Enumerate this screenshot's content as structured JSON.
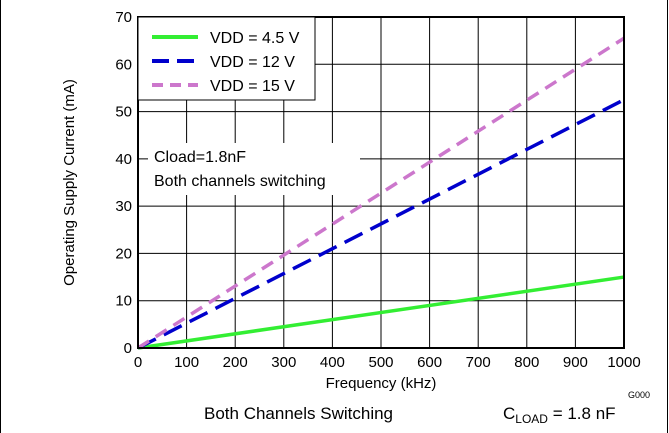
{
  "chart_data": {
    "type": "line",
    "xlabel": "Frequency (kHz)",
    "ylabel": "Operating Supply Current (mA)",
    "xlim": [
      0,
      1000
    ],
    "ylim": [
      0,
      70
    ],
    "xticks": [
      0,
      100,
      200,
      300,
      400,
      500,
      600,
      700,
      800,
      900,
      1000
    ],
    "yticks": [
      0,
      10,
      20,
      30,
      40,
      50,
      60,
      70
    ],
    "grid": true,
    "legend_position": "top-left",
    "series": [
      {
        "name": "VDD = 4.5 V",
        "color": "#33ee33",
        "dash": "solid",
        "x": [
          0,
          1000
        ],
        "y": [
          0,
          15
        ]
      },
      {
        "name": "VDD = 12 V",
        "color": "#0000cc",
        "dash": "dashed",
        "x": [
          0,
          1000
        ],
        "y": [
          0,
          52.5
        ]
      },
      {
        "name": "VDD = 15 V",
        "color": "#cc77cc",
        "dash": "dashed",
        "x": [
          0,
          1000
        ],
        "y": [
          0,
          65.5
        ]
      }
    ],
    "annotations": [
      "Cload=1.8nF",
      "Both channels switching"
    ],
    "figure_id": "G000"
  },
  "captions": {
    "left": "Both Channels Switching",
    "right_main": "C",
    "right_sub": "LOAD",
    "right_value": " = 1.8 nF"
  }
}
